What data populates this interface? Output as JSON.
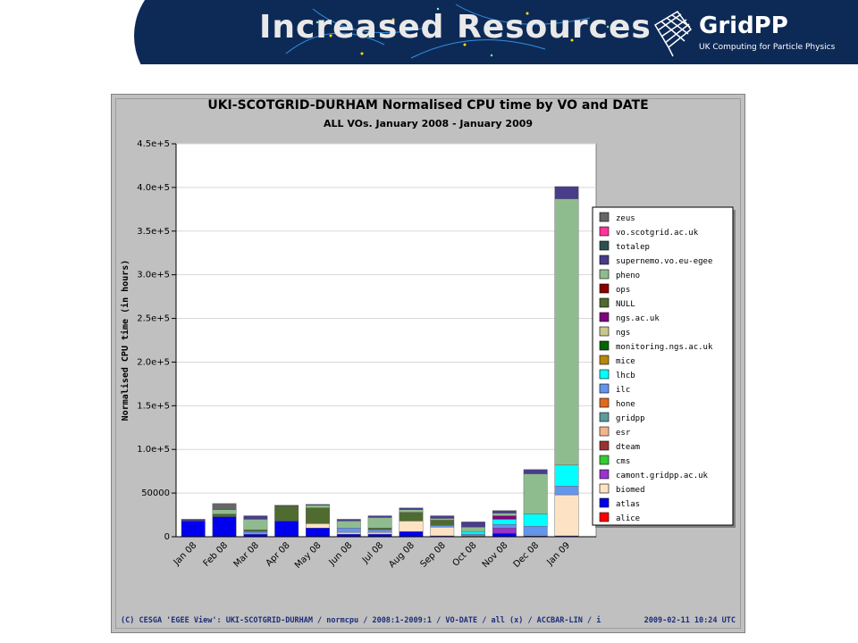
{
  "header": {
    "title": "Increased Resources",
    "logo_text": "GridPP",
    "logo_sub": "UK Computing for Particle Physics"
  },
  "footer": {
    "left": "(C) CESGA 'EGEE View': UKI-SCOTGRID-DURHAM / normcpu / 2008:1-2009:1 / VO-DATE / all (x) / ACCBAR-LIN / i",
    "right": "2009-02-11 10:24 UTC"
  },
  "chart_data": {
    "type": "bar",
    "stacked": true,
    "title": "UKI-SCOTGRID-DURHAM Normalised CPU time by VO and DATE",
    "subtitle": "ALL VOs. January 2008 - January 2009",
    "ylabel": "Normalised CPU time (in hours)",
    "xlabel": "",
    "ylim": [
      0,
      450000
    ],
    "yticks": [
      0,
      50000,
      100000,
      150000,
      200000,
      250000,
      300000,
      350000,
      400000,
      450000
    ],
    "ytick_labels": [
      "0",
      "50000",
      "1.0e+5",
      "1.5e+5",
      "2.0e+5",
      "2.5e+5",
      "3.0e+5",
      "3.5e+5",
      "4.0e+5",
      "4.5e+5"
    ],
    "grid": true,
    "legend_position": "right",
    "categories": [
      "Jan 08",
      "Feb 08",
      "Mar 08",
      "Apr 08",
      "May 08",
      "Jun 08",
      "Jul 08",
      "Aug 08",
      "Sep 08",
      "Oct 08",
      "Nov 08",
      "Dec 08",
      "Jan 09"
    ],
    "series": [
      {
        "name": "alice",
        "color": "#ff0000",
        "values": [
          0,
          0,
          0,
          0,
          0,
          0,
          0,
          0,
          0,
          0,
          0,
          0,
          0
        ]
      },
      {
        "name": "atlas",
        "color": "#0000ee",
        "values": [
          18000,
          23000,
          3000,
          18000,
          10000,
          3000,
          3000,
          6000,
          1000,
          0,
          4000,
          1000,
          1000
        ]
      },
      {
        "name": "biomed",
        "color": "#fde3c4",
        "values": [
          0,
          0,
          1000,
          0,
          5000,
          2000,
          2000,
          12000,
          10000,
          1000,
          0,
          1000,
          47000
        ]
      },
      {
        "name": "camont.gridpp.ac.uk",
        "color": "#9933cc",
        "values": [
          0,
          0,
          0,
          0,
          0,
          0,
          0,
          0,
          0,
          0,
          6000,
          0,
          0
        ]
      },
      {
        "name": "cms",
        "color": "#33cc33",
        "values": [
          0,
          0,
          0,
          0,
          0,
          0,
          0,
          0,
          0,
          0,
          0,
          0,
          0
        ]
      },
      {
        "name": "dteam",
        "color": "#993333",
        "values": [
          0,
          0,
          0,
          0,
          0,
          0,
          0,
          0,
          0,
          0,
          0,
          0,
          0
        ]
      },
      {
        "name": "esr",
        "color": "#f2b48a",
        "values": [
          0,
          0,
          0,
          0,
          0,
          0,
          0,
          0,
          0,
          0,
          0,
          0,
          0
        ]
      },
      {
        "name": "gridpp",
        "color": "#5a9b9b",
        "values": [
          0,
          0,
          0,
          0,
          0,
          0,
          0,
          0,
          0,
          0,
          0,
          0,
          0
        ]
      },
      {
        "name": "hone",
        "color": "#e06a1f",
        "values": [
          0,
          0,
          0,
          0,
          0,
          0,
          0,
          0,
          0,
          0,
          0,
          0,
          0
        ]
      },
      {
        "name": "ilc",
        "color": "#6495ed",
        "values": [
          0,
          0,
          2000,
          0,
          0,
          5000,
          3000,
          0,
          2000,
          2000,
          4000,
          10000,
          10000
        ]
      },
      {
        "name": "lhcb",
        "color": "#00ffff",
        "values": [
          0,
          0,
          0,
          0,
          0,
          0,
          0,
          0,
          0,
          3000,
          6000,
          14000,
          24000
        ]
      },
      {
        "name": "mice",
        "color": "#b8860b",
        "values": [
          0,
          0,
          0,
          0,
          0,
          0,
          0,
          0,
          0,
          0,
          0,
          0,
          0
        ]
      },
      {
        "name": "monitoring.ngs.ac.uk",
        "color": "#006600",
        "values": [
          0,
          0,
          0,
          0,
          0,
          0,
          0,
          0,
          0,
          0,
          0,
          0,
          0
        ]
      },
      {
        "name": "ngs",
        "color": "#c8c88c",
        "values": [
          0,
          0,
          0,
          0,
          0,
          0,
          0,
          0,
          0,
          0,
          0,
          0,
          0
        ]
      },
      {
        "name": "ngs.ac.uk",
        "color": "#800080",
        "values": [
          0,
          0,
          0,
          0,
          0,
          0,
          0,
          0,
          0,
          0,
          4000,
          0,
          0
        ]
      },
      {
        "name": "NULL",
        "color": "#4f6b2f",
        "values": [
          0,
          3000,
          2000,
          17000,
          18000,
          0,
          2000,
          10000,
          6000,
          0,
          0,
          0,
          0
        ]
      },
      {
        "name": "ops",
        "color": "#8b0000",
        "values": [
          0,
          0,
          0,
          0,
          0,
          0,
          0,
          0,
          0,
          0,
          0,
          0,
          0
        ]
      },
      {
        "name": "pheno",
        "color": "#8fbc8f",
        "values": [
          0,
          5000,
          12000,
          0,
          3000,
          8000,
          12000,
          3000,
          2000,
          5000,
          3000,
          46000,
          305000
        ]
      },
      {
        "name": "supernemo.vo.eu-egee",
        "color": "#483d8b",
        "values": [
          2000,
          0,
          4000,
          1000,
          1000,
          2000,
          2000,
          2000,
          3000,
          6000,
          3000,
          5000,
          14000
        ]
      },
      {
        "name": "totalep",
        "color": "#2f4f4f",
        "values": [
          0,
          0,
          0,
          0,
          0,
          0,
          0,
          0,
          0,
          0,
          0,
          0,
          0
        ]
      },
      {
        "name": "vo.scotgrid.ac.uk",
        "color": "#ff3399",
        "values": [
          0,
          0,
          0,
          0,
          0,
          0,
          0,
          0,
          0,
          0,
          0,
          0,
          0
        ]
      },
      {
        "name": "zeus",
        "color": "#666666",
        "values": [
          0,
          7000,
          0,
          0,
          0,
          0,
          0,
          0,
          0,
          0,
          0,
          0,
          0
        ]
      }
    ],
    "legend_order": [
      "zeus",
      "vo.scotgrid.ac.uk",
      "totalep",
      "supernemo.vo.eu-egee",
      "pheno",
      "ops",
      "NULL",
      "ngs.ac.uk",
      "ngs",
      "monitoring.ngs.ac.uk",
      "mice",
      "lhcb",
      "ilc",
      "hone",
      "gridpp",
      "esr",
      "dteam",
      "cms",
      "camont.gridpp.ac.uk",
      "biomed",
      "atlas",
      "alice"
    ]
  }
}
